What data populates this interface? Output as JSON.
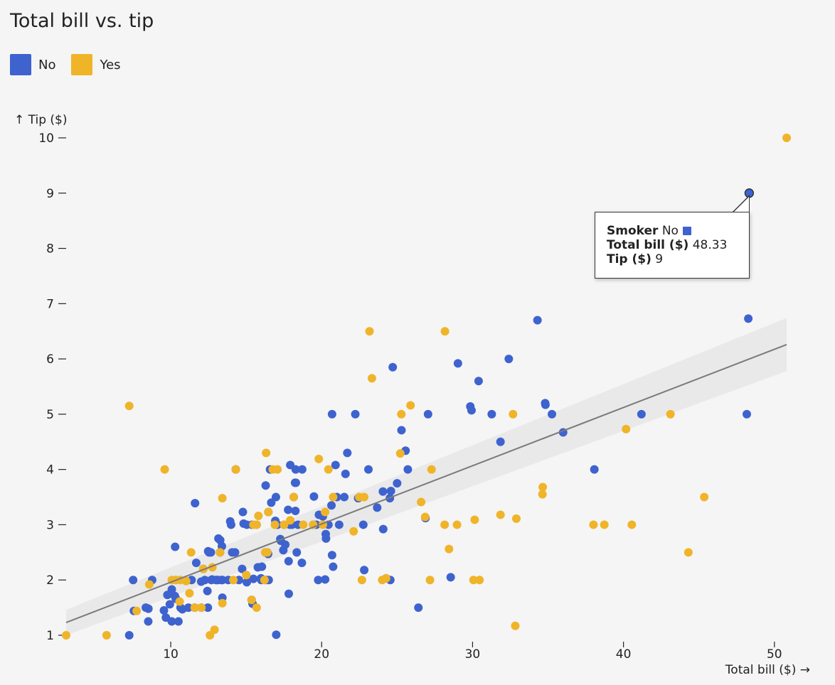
{
  "chart_data": {
    "type": "scatter",
    "title": "Total bill vs. tip",
    "xlabel": "Total bill ($) →",
    "ylabel": "↑ Tip ($)",
    "xlim": [
      3,
      52.5
    ],
    "ylim": [
      0.9,
      10.3
    ],
    "xticks": [
      10,
      20,
      30,
      40,
      50
    ],
    "yticks": [
      1,
      2,
      3,
      4,
      5,
      6,
      7,
      8,
      9,
      10
    ],
    "legend": {
      "placement": "top-left"
    },
    "grid": false,
    "series": [
      {
        "name": "No",
        "color": "#3e63cf",
        "points": [
          [
            7.25,
            1.0
          ],
          [
            7.51,
            2.0
          ],
          [
            7.56,
            1.44
          ],
          [
            8.35,
            1.5
          ],
          [
            8.51,
            1.25
          ],
          [
            8.52,
            1.48
          ],
          [
            8.77,
            2.0
          ],
          [
            9.55,
            1.45
          ],
          [
            9.68,
            1.32
          ],
          [
            9.78,
            1.73
          ],
          [
            9.94,
            1.56
          ],
          [
            10.07,
            1.83
          ],
          [
            10.07,
            1.25
          ],
          [
            10.27,
            1.71
          ],
          [
            10.29,
            2.6
          ],
          [
            10.33,
            1.67
          ],
          [
            10.34,
            1.66
          ],
          [
            10.51,
            1.25
          ],
          [
            10.65,
            1.5
          ],
          [
            10.77,
            1.47
          ],
          [
            11.17,
            1.5
          ],
          [
            11.38,
            2.0
          ],
          [
            11.59,
            1.5
          ],
          [
            11.61,
            3.39
          ],
          [
            11.69,
            2.31
          ],
          [
            12.02,
            1.97
          ],
          [
            12.03,
            1.5
          ],
          [
            12.16,
            2.2
          ],
          [
            12.26,
            2.0
          ],
          [
            12.43,
            1.8
          ],
          [
            12.46,
            1.5
          ],
          [
            12.48,
            2.52
          ],
          [
            12.54,
            2.5
          ],
          [
            12.66,
            2.5
          ],
          [
            12.69,
            2.0
          ],
          [
            12.74,
            2.01
          ],
          [
            13.0,
            2.0
          ],
          [
            13.03,
            2.0
          ],
          [
            13.13,
            2.0
          ],
          [
            13.16,
            2.75
          ],
          [
            13.27,
            2.5
          ],
          [
            13.28,
            2.72
          ],
          [
            13.37,
            2.0
          ],
          [
            13.39,
            2.61
          ],
          [
            13.42,
            1.68
          ],
          [
            13.42,
            2.0
          ],
          [
            13.81,
            2.0
          ],
          [
            13.94,
            3.06
          ],
          [
            14.0,
            3.0
          ],
          [
            14.07,
            2.5
          ],
          [
            14.26,
            2.5
          ],
          [
            14.31,
            4.0
          ],
          [
            14.52,
            2.0
          ],
          [
            14.73,
            2.2
          ],
          [
            14.78,
            3.23
          ],
          [
            14.83,
            3.02
          ],
          [
            15.04,
            1.96
          ],
          [
            15.04,
            3.0
          ],
          [
            15.36,
            1.64
          ],
          [
            15.38,
            3.0
          ],
          [
            15.42,
            1.57
          ],
          [
            15.48,
            2.02
          ],
          [
            15.69,
            3.0
          ],
          [
            15.77,
            2.23
          ],
          [
            15.98,
            2.03
          ],
          [
            16.0,
            2.0
          ],
          [
            16.04,
            2.24
          ],
          [
            16.27,
            2.5
          ],
          [
            16.29,
            3.71
          ],
          [
            16.31,
            2.0
          ],
          [
            16.4,
            2.5
          ],
          [
            16.45,
            2.47
          ],
          [
            16.47,
            3.23
          ],
          [
            16.49,
            2.0
          ],
          [
            16.58,
            4.0
          ],
          [
            16.66,
            3.4
          ],
          [
            16.93,
            3.07
          ],
          [
            16.97,
            3.5
          ],
          [
            16.99,
            1.01
          ],
          [
            17.07,
            3.0
          ],
          [
            17.26,
            2.74
          ],
          [
            17.29,
            2.71
          ],
          [
            17.46,
            2.54
          ],
          [
            17.51,
            3.0
          ],
          [
            17.59,
            2.64
          ],
          [
            17.78,
            3.27
          ],
          [
            17.81,
            2.34
          ],
          [
            17.82,
            1.75
          ],
          [
            17.92,
            4.08
          ],
          [
            17.89,
            3.0
          ],
          [
            18.04,
            3.0
          ],
          [
            18.15,
            3.5
          ],
          [
            18.24,
            3.76
          ],
          [
            18.26,
            3.25
          ],
          [
            18.28,
            4.0
          ],
          [
            18.29,
            3.76
          ],
          [
            18.35,
            2.5
          ],
          [
            18.43,
            3.0
          ],
          [
            18.69,
            2.31
          ],
          [
            18.71,
            4.0
          ],
          [
            19.44,
            3.0
          ],
          [
            19.49,
            3.51
          ],
          [
            19.65,
            3.0
          ],
          [
            19.77,
            2.0
          ],
          [
            19.82,
            3.18
          ],
          [
            20.08,
            3.15
          ],
          [
            20.23,
            2.01
          ],
          [
            20.27,
            2.83
          ],
          [
            20.29,
            2.75
          ],
          [
            20.45,
            3.0
          ],
          [
            20.65,
            3.35
          ],
          [
            20.69,
            2.45
          ],
          [
            20.69,
            5.0
          ],
          [
            20.76,
            2.24
          ],
          [
            20.92,
            4.08
          ],
          [
            21.01,
            3.5
          ],
          [
            21.16,
            3.0
          ],
          [
            21.5,
            3.5
          ],
          [
            21.58,
            3.92
          ],
          [
            21.7,
            4.3
          ],
          [
            22.23,
            5.0
          ],
          [
            22.42,
            3.48
          ],
          [
            22.76,
            3.0
          ],
          [
            22.82,
            2.18
          ],
          [
            23.1,
            4.0
          ],
          [
            23.68,
            3.31
          ],
          [
            24.06,
            3.6
          ],
          [
            24.08,
            2.92
          ],
          [
            24.27,
            2.03
          ],
          [
            24.52,
            3.48
          ],
          [
            24.55,
            2.0
          ],
          [
            24.59,
            3.61
          ],
          [
            24.71,
            5.85
          ],
          [
            25.0,
            3.75
          ],
          [
            25.29,
            4.71
          ],
          [
            25.56,
            4.34
          ],
          [
            25.71,
            4.0
          ],
          [
            26.41,
            1.5
          ],
          [
            26.88,
            3.12
          ],
          [
            27.05,
            5.0
          ],
          [
            28.55,
            2.05
          ],
          [
            29.03,
            5.92
          ],
          [
            29.85,
            5.14
          ],
          [
            29.93,
            5.07
          ],
          [
            30.4,
            5.6
          ],
          [
            31.27,
            5.0
          ],
          [
            31.85,
            4.5
          ],
          [
            32.4,
            6.0
          ],
          [
            34.3,
            6.7
          ],
          [
            34.83,
            5.17
          ],
          [
            34.81,
            5.2
          ],
          [
            35.26,
            5.0
          ],
          [
            36.0,
            4.67
          ],
          [
            38.07,
            4.0
          ],
          [
            41.19,
            5.0
          ],
          [
            48.17,
            5.0
          ],
          [
            48.27,
            6.73
          ],
          [
            48.33,
            9.0
          ]
        ]
      },
      {
        "name": "Yes",
        "color": "#f0b429",
        "points": [
          [
            3.07,
            1.0
          ],
          [
            5.75,
            1.0
          ],
          [
            7.25,
            5.15
          ],
          [
            7.74,
            1.44
          ],
          [
            8.58,
            1.92
          ],
          [
            9.6,
            4.0
          ],
          [
            10.07,
            2.0
          ],
          [
            10.33,
            2.0
          ],
          [
            10.34,
            2.0
          ],
          [
            10.59,
            1.61
          ],
          [
            10.63,
            2.0
          ],
          [
            11.02,
            1.98
          ],
          [
            11.24,
            1.76
          ],
          [
            11.35,
            2.5
          ],
          [
            11.59,
            1.5
          ],
          [
            12.03,
            1.5
          ],
          [
            12.16,
            2.2
          ],
          [
            12.6,
            1.0
          ],
          [
            12.76,
            2.23
          ],
          [
            12.9,
            1.1
          ],
          [
            13.27,
            2.5
          ],
          [
            13.42,
            3.48
          ],
          [
            13.42,
            1.58
          ],
          [
            14.15,
            2.0
          ],
          [
            14.31,
            4.0
          ],
          [
            15.01,
            2.09
          ],
          [
            15.36,
            1.64
          ],
          [
            15.48,
            3.0
          ],
          [
            15.69,
            1.5
          ],
          [
            15.69,
            3.0
          ],
          [
            15.81,
            3.16
          ],
          [
            16.21,
            2.0
          ],
          [
            16.27,
            2.5
          ],
          [
            16.32,
            4.3
          ],
          [
            16.4,
            2.5
          ],
          [
            16.47,
            3.23
          ],
          [
            16.76,
            4.0
          ],
          [
            16.9,
            3.0
          ],
          [
            17.07,
            4.0
          ],
          [
            17.51,
            3.0
          ],
          [
            17.92,
            3.08
          ],
          [
            18.15,
            3.5
          ],
          [
            18.78,
            3.0
          ],
          [
            19.44,
            3.0
          ],
          [
            19.81,
            4.19
          ],
          [
            20.08,
            3.0
          ],
          [
            20.23,
            3.23
          ],
          [
            20.45,
            4.0
          ],
          [
            20.76,
            3.5
          ],
          [
            22.12,
            2.88
          ],
          [
            22.49,
            3.5
          ],
          [
            22.67,
            2.0
          ],
          [
            22.82,
            3.5
          ],
          [
            23.17,
            6.5
          ],
          [
            23.33,
            5.65
          ],
          [
            24.01,
            2.0
          ],
          [
            24.27,
            2.03
          ],
          [
            25.21,
            4.29
          ],
          [
            25.28,
            5.0
          ],
          [
            25.89,
            5.16
          ],
          [
            26.59,
            3.41
          ],
          [
            26.86,
            3.14
          ],
          [
            27.18,
            2.0
          ],
          [
            27.28,
            4.0
          ],
          [
            28.15,
            3.0
          ],
          [
            28.17,
            6.5
          ],
          [
            28.44,
            2.56
          ],
          [
            28.97,
            3.0
          ],
          [
            30.06,
            2.0
          ],
          [
            30.14,
            3.09
          ],
          [
            30.46,
            2.0
          ],
          [
            31.85,
            3.18
          ],
          [
            32.68,
            5.0
          ],
          [
            32.83,
            1.17
          ],
          [
            32.9,
            3.11
          ],
          [
            34.63,
            3.55
          ],
          [
            34.65,
            3.68
          ],
          [
            38.01,
            3.0
          ],
          [
            38.73,
            3.0
          ],
          [
            40.17,
            4.73
          ],
          [
            40.55,
            3.0
          ],
          [
            43.11,
            5.0
          ],
          [
            44.3,
            2.5
          ],
          [
            45.35,
            3.5
          ],
          [
            50.81,
            10.0
          ]
        ]
      }
    ],
    "regression": {
      "x": [
        3.07,
        50.81
      ],
      "y": [
        1.23,
        6.26
      ],
      "band_lower": [
        1.0,
        5.78
      ],
      "band_upper": [
        1.46,
        6.74
      ],
      "color": "#7a7a7a",
      "band_color": "#e6e6e6"
    },
    "tooltip": {
      "label_1": "Smoker",
      "value_1": "No",
      "label_2": "Total bill ($)",
      "value_2": "48.33",
      "label_3": "Tip ($)",
      "value_3": "9",
      "swatch_color": "#3e63cf",
      "point": [
        48.33,
        9.0
      ]
    }
  }
}
